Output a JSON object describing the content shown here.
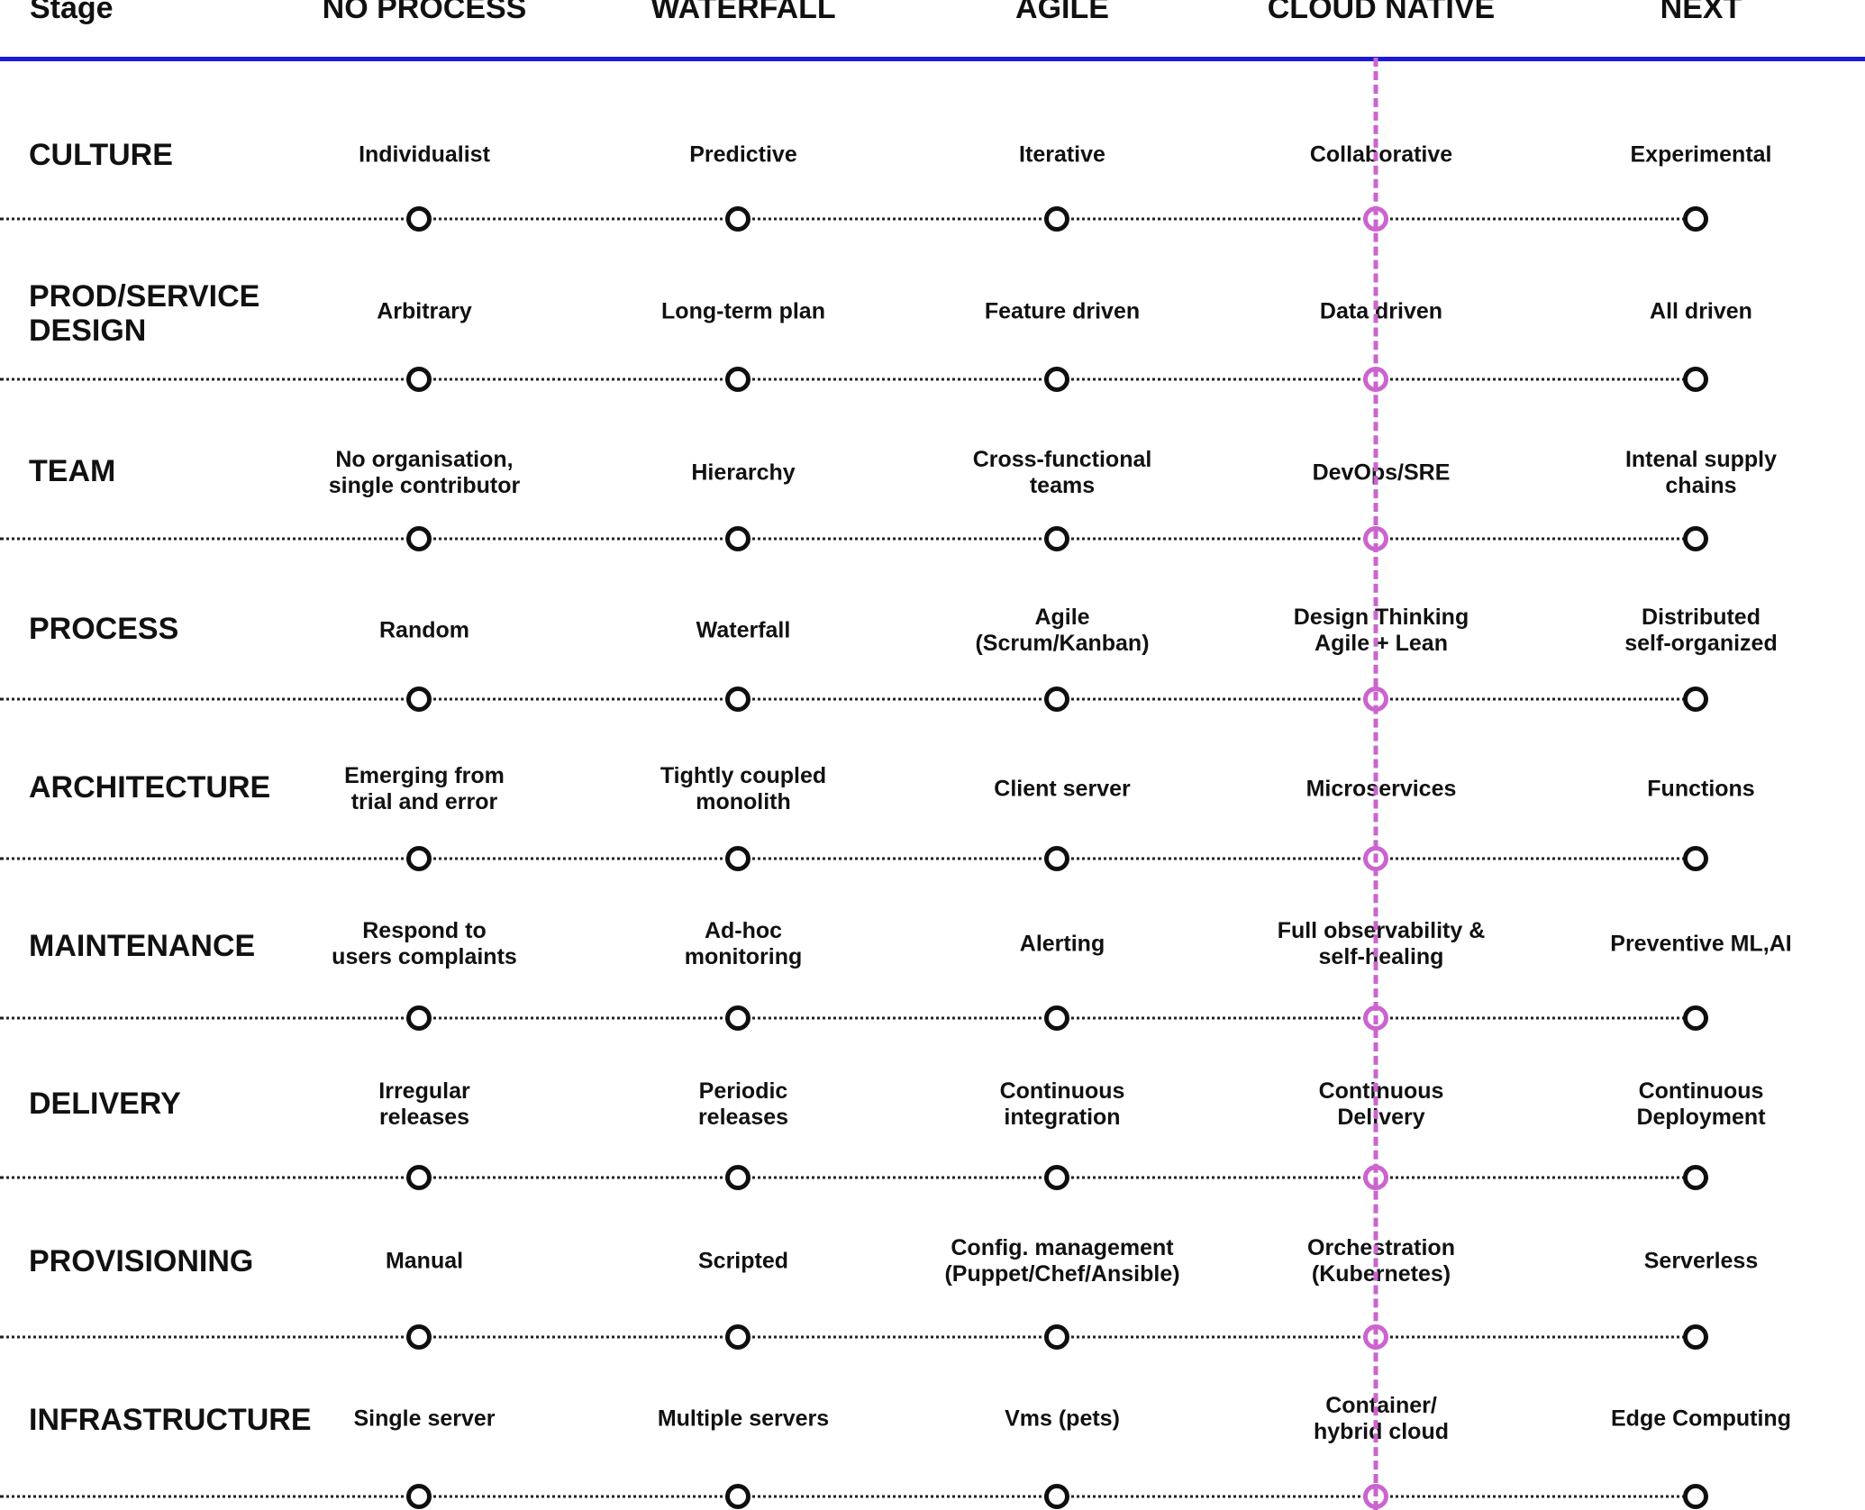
{
  "header": {
    "stage_label": "Stage",
    "columns": [
      "NO PROCESS",
      "WATERFALL",
      "AGILE",
      "CLOUD NATIVE",
      "NEXT"
    ]
  },
  "highlight_column_index": 3,
  "colors": {
    "header_rule": "#1a1ad6",
    "highlight": "#cb64cf",
    "text": "#111111",
    "node": "#0f0f0f"
  },
  "rows": [
    {
      "label": "CULTURE",
      "cells": [
        "Individualist",
        "Predictive",
        "Iterative",
        "Collaborative",
        "Experimental"
      ]
    },
    {
      "label": "PROD/SERVICE\nDESIGN",
      "cells": [
        "Arbitrary",
        "Long-term plan",
        "Feature driven",
        "Data driven",
        "All driven"
      ]
    },
    {
      "label": "TEAM",
      "cells": [
        "No organisation,\nsingle contributor",
        "Hierarchy",
        "Cross-functional\nteams",
        "DevOps/SRE",
        "Intenal supply\nchains"
      ]
    },
    {
      "label": "PROCESS",
      "cells": [
        "Random",
        "Waterfall",
        "Agile\n(Scrum/Kanban)",
        "Design Thinking\nAgile + Lean",
        "Distributed\nself-organized"
      ]
    },
    {
      "label": "ARCHITECTURE",
      "cells": [
        "Emerging from\ntrial and error",
        "Tightly coupled\nmonolith",
        "Client server",
        "Microservices",
        "Functions"
      ]
    },
    {
      "label": "MAINTENANCE",
      "cells": [
        "Respond to\nusers complaints",
        "Ad-hoc\nmonitoring",
        "Alerting",
        "Full observability &\nself-healing",
        "Preventive ML,AI"
      ]
    },
    {
      "label": "DELIVERY",
      "cells": [
        "Irregular\nreleases",
        "Periodic\nreleases",
        "Continuous\nintegration",
        "Continuous\nDelivery",
        "Continuous\nDeployment"
      ]
    },
    {
      "label": "PROVISIONING",
      "cells": [
        "Manual",
        "Scripted",
        "Config. management\n(Puppet/Chef/Ansible)",
        "Orchestration\n(Kubernetes)",
        "Serverless"
      ]
    },
    {
      "label": "INFRASTRUCTURE",
      "cells": [
        "Single server",
        "Multiple servers",
        "Vms (pets)",
        "Container/\nhybrid cloud",
        "Edge Computing"
      ]
    }
  ]
}
